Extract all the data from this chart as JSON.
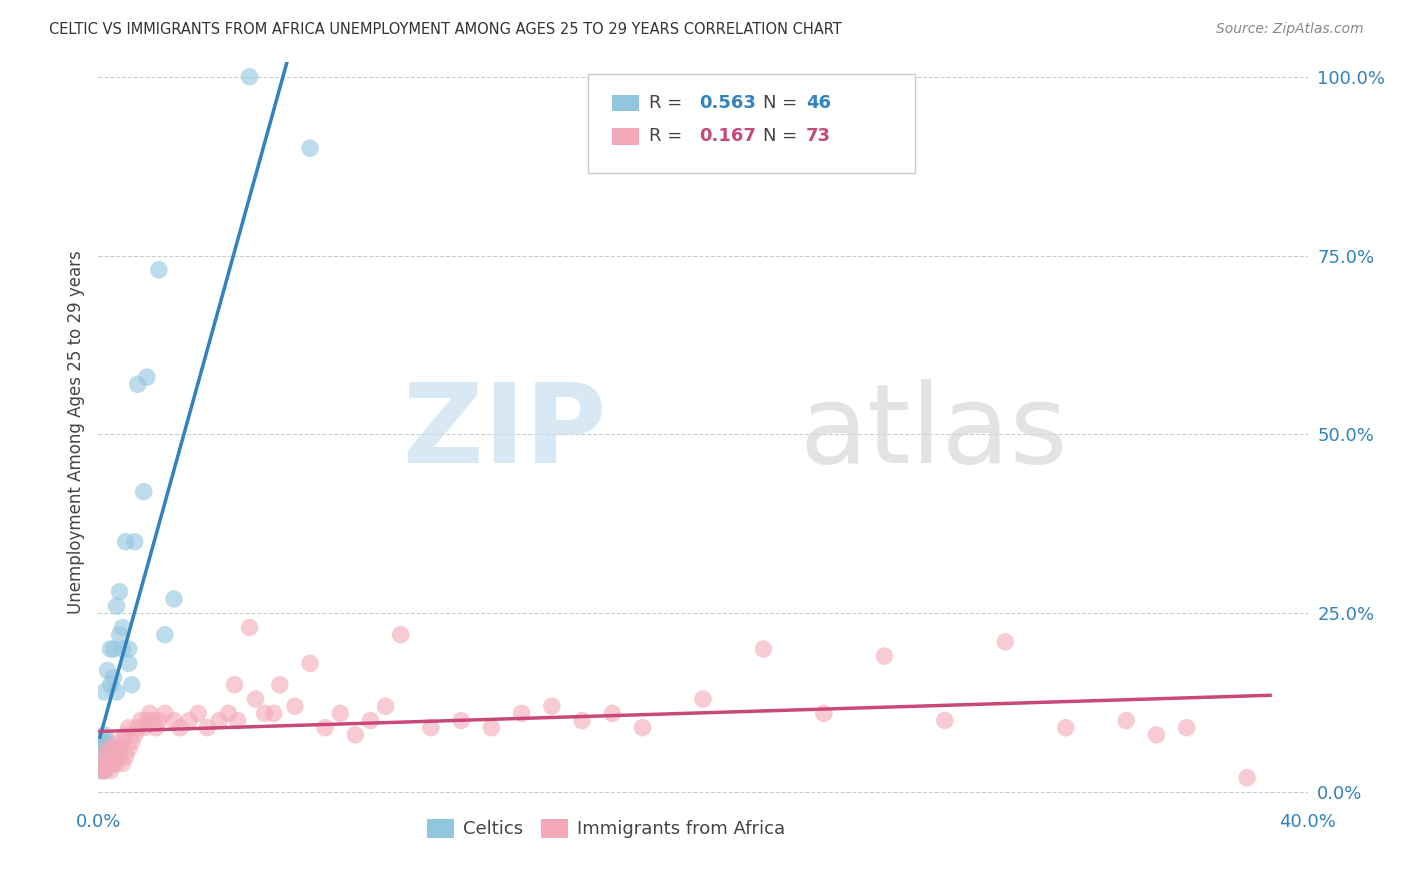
{
  "title": "CELTIC VS IMMIGRANTS FROM AFRICA UNEMPLOYMENT AMONG AGES 25 TO 29 YEARS CORRELATION CHART",
  "source": "Source: ZipAtlas.com",
  "ylabel": "Unemployment Among Ages 25 to 29 years",
  "celtics_R": "0.563",
  "celtics_N": "46",
  "africa_R": "0.167",
  "africa_N": "73",
  "celtics_color": "#92c5de",
  "celtics_line_color": "#3182bd",
  "africa_color": "#f4a9b8",
  "africa_line_color": "#c9487a",
  "background_color": "#ffffff",
  "celtics_x": [
    0.001,
    0.001,
    0.001,
    0.001,
    0.001,
    0.002,
    0.002,
    0.002,
    0.002,
    0.002,
    0.002,
    0.002,
    0.003,
    0.003,
    0.003,
    0.003,
    0.003,
    0.004,
    0.004,
    0.004,
    0.004,
    0.005,
    0.005,
    0.005,
    0.005,
    0.005,
    0.006,
    0.006,
    0.006,
    0.007,
    0.007,
    0.008,
    0.008,
    0.009,
    0.01,
    0.01,
    0.011,
    0.012,
    0.013,
    0.015,
    0.016,
    0.02,
    0.022,
    0.025,
    0.05,
    0.07
  ],
  "celtics_y": [
    0.03,
    0.04,
    0.05,
    0.06,
    0.07,
    0.03,
    0.04,
    0.05,
    0.06,
    0.07,
    0.08,
    0.14,
    0.04,
    0.05,
    0.06,
    0.07,
    0.17,
    0.04,
    0.06,
    0.15,
    0.2,
    0.04,
    0.05,
    0.06,
    0.16,
    0.2,
    0.05,
    0.14,
    0.26,
    0.22,
    0.28,
    0.2,
    0.23,
    0.35,
    0.18,
    0.2,
    0.15,
    0.35,
    0.57,
    0.42,
    0.58,
    0.73,
    0.22,
    0.27,
    1.0,
    0.9
  ],
  "africa_x": [
    0.001,
    0.001,
    0.002,
    0.002,
    0.003,
    0.003,
    0.004,
    0.004,
    0.005,
    0.005,
    0.005,
    0.006,
    0.006,
    0.007,
    0.007,
    0.008,
    0.008,
    0.009,
    0.009,
    0.01,
    0.01,
    0.011,
    0.012,
    0.013,
    0.014,
    0.015,
    0.016,
    0.017,
    0.018,
    0.019,
    0.02,
    0.022,
    0.025,
    0.027,
    0.03,
    0.033,
    0.036,
    0.04,
    0.043,
    0.046,
    0.05,
    0.055,
    0.06,
    0.065,
    0.07,
    0.08,
    0.09,
    0.1,
    0.11,
    0.12,
    0.13,
    0.14,
    0.15,
    0.16,
    0.17,
    0.18,
    0.2,
    0.22,
    0.24,
    0.26,
    0.28,
    0.3,
    0.32,
    0.34,
    0.35,
    0.36,
    0.045,
    0.052,
    0.058,
    0.075,
    0.085,
    0.095,
    0.38
  ],
  "africa_y": [
    0.03,
    0.04,
    0.03,
    0.05,
    0.04,
    0.06,
    0.03,
    0.05,
    0.04,
    0.05,
    0.06,
    0.04,
    0.07,
    0.05,
    0.06,
    0.04,
    0.07,
    0.05,
    0.08,
    0.06,
    0.09,
    0.07,
    0.08,
    0.09,
    0.1,
    0.09,
    0.1,
    0.11,
    0.1,
    0.09,
    0.1,
    0.11,
    0.1,
    0.09,
    0.1,
    0.11,
    0.09,
    0.1,
    0.11,
    0.1,
    0.23,
    0.11,
    0.15,
    0.12,
    0.18,
    0.11,
    0.1,
    0.22,
    0.09,
    0.1,
    0.09,
    0.11,
    0.12,
    0.1,
    0.11,
    0.09,
    0.13,
    0.2,
    0.11,
    0.19,
    0.1,
    0.21,
    0.09,
    0.1,
    0.08,
    0.09,
    0.15,
    0.13,
    0.11,
    0.09,
    0.08,
    0.12,
    0.02
  ],
  "xlim": [
    0.0,
    0.4
  ],
  "ylim": [
    -0.015,
    1.02
  ],
  "right_ytick_vals": [
    0.0,
    0.25,
    0.5,
    0.75,
    1.0
  ],
  "right_ytick_labels": [
    "0.0%",
    "25.0%",
    "50.0%",
    "75.0%",
    "100.0%"
  ],
  "xtick_show_vals": [
    0.0,
    0.4
  ],
  "xtick_show_labels": [
    "0.0%",
    "40.0%"
  ],
  "grid_ytick_vals": [
    0.0,
    0.25,
    0.5,
    0.75,
    1.0
  ]
}
